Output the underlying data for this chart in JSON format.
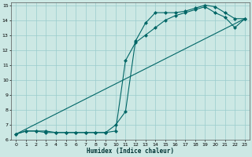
{
  "title": "",
  "xlabel": "Humidex (Indice chaleur)",
  "background_color": "#cce8e4",
  "grid_color": "#99cccc",
  "line_color": "#006666",
  "xlim": [
    -0.5,
    23.5
  ],
  "ylim": [
    6,
    15.2
  ],
  "xticks": [
    0,
    1,
    2,
    3,
    4,
    5,
    6,
    7,
    8,
    9,
    10,
    11,
    12,
    13,
    14,
    15,
    16,
    17,
    18,
    19,
    20,
    21,
    22,
    23
  ],
  "yticks": [
    6,
    7,
    8,
    9,
    10,
    11,
    12,
    13,
    14,
    15
  ],
  "series": [
    {
      "x": [
        0,
        1,
        2,
        3,
        4,
        5,
        6,
        7,
        8,
        9,
        10,
        11,
        12,
        13,
        14,
        15,
        16,
        17,
        18,
        19,
        20,
        21,
        22,
        23
      ],
      "y": [
        6.4,
        6.6,
        6.6,
        6.6,
        6.5,
        6.5,
        6.5,
        6.5,
        6.5,
        6.5,
        7.0,
        7.9,
        12.6,
        13.8,
        14.5,
        14.5,
        14.5,
        14.6,
        14.8,
        15.0,
        14.9,
        14.5,
        14.1,
        14.1
      ],
      "marker": "D",
      "markersize": 2.0,
      "linewidth": 0.8
    },
    {
      "x": [
        0,
        1,
        2,
        3,
        4,
        5,
        6,
        7,
        8,
        9,
        10,
        11,
        12,
        13,
        14,
        15,
        16,
        17,
        18,
        19,
        20,
        21,
        22,
        23
      ],
      "y": [
        6.4,
        6.6,
        6.6,
        6.5,
        6.5,
        6.5,
        6.5,
        6.5,
        6.5,
        6.5,
        6.6,
        11.3,
        12.5,
        13.0,
        13.5,
        14.0,
        14.3,
        14.5,
        14.7,
        14.9,
        14.5,
        14.2,
        13.5,
        14.1
      ],
      "marker": "D",
      "markersize": 2.0,
      "linewidth": 0.8
    },
    {
      "x": [
        0,
        23
      ],
      "y": [
        6.4,
        14.1
      ],
      "marker": null,
      "markersize": 0,
      "linewidth": 0.8
    }
  ]
}
